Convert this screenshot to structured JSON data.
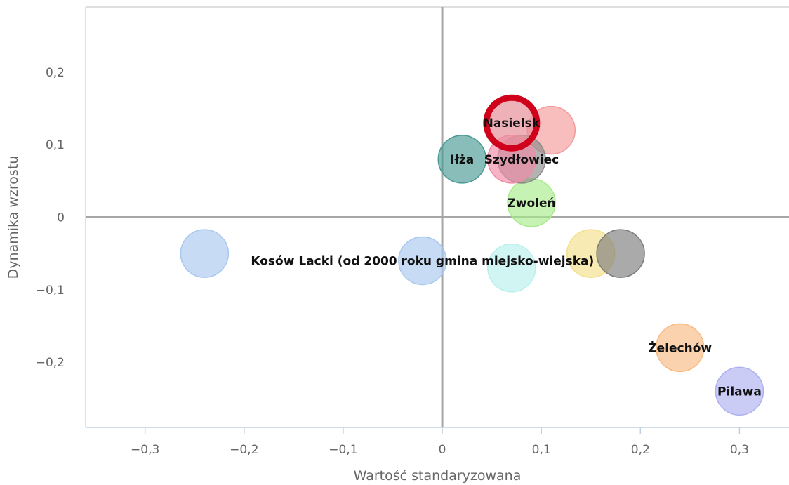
{
  "chart_data": {
    "type": "scatter",
    "xlabel": "Wartość standaryzowana",
    "ylabel": "Dynamika wzrostu",
    "xlim": [
      -0.36,
      0.35
    ],
    "ylim": [
      -0.29,
      0.29
    ],
    "xticks": [
      {
        "value": -0.3,
        "label": "−0,3"
      },
      {
        "value": -0.2,
        "label": "−0,2"
      },
      {
        "value": -0.1,
        "label": "−0,1"
      },
      {
        "value": 0,
        "label": "0"
      },
      {
        "value": 0.1,
        "label": "0,1"
      },
      {
        "value": 0.2,
        "label": "0,2"
      },
      {
        "value": 0.3,
        "label": "0,3"
      }
    ],
    "yticks": [
      {
        "value": 0.2,
        "label": "0,2"
      },
      {
        "value": 0.1,
        "label": "0,1"
      },
      {
        "value": 0,
        "label": "0"
      },
      {
        "value": -0.1,
        "label": "−0,1"
      },
      {
        "value": -0.2,
        "label": "−0,2"
      }
    ],
    "grid": false,
    "legend": "none",
    "points": [
      {
        "x": -0.24,
        "y": -0.05,
        "color": "#a9c8f0",
        "label": ""
      },
      {
        "x": -0.02,
        "y": -0.06,
        "color": "#a9c8f0",
        "label": "Kosów Lacki (od 2000 roku gmina miejsko-wiejska)"
      },
      {
        "x": 0.07,
        "y": -0.07,
        "color": "#b8f0ec",
        "label": ""
      },
      {
        "x": 0.15,
        "y": -0.05,
        "color": "#f2e08a",
        "label": ""
      },
      {
        "x": 0.18,
        "y": -0.05,
        "color": "#7d7d7d",
        "label": ""
      },
      {
        "x": 0.09,
        "y": 0.02,
        "color": "#a8eb8a",
        "label": "Zwoleń"
      },
      {
        "x": 0.02,
        "y": 0.08,
        "color": "#4a9a94",
        "label": "Iłża"
      },
      {
        "x": 0.11,
        "y": 0.12,
        "color": "#f49a9a",
        "label": ""
      },
      {
        "x": 0.08,
        "y": 0.08,
        "color": "#8a8a8a",
        "label": "Szydłowiec"
      },
      {
        "x": 0.07,
        "y": 0.08,
        "color": "#f08aa6",
        "label": ""
      },
      {
        "x": 0.07,
        "y": 0.13,
        "color": "#e8909a",
        "label": "Nasielsk",
        "highlight": true,
        "highlight_color": "#d0021b"
      },
      {
        "x": 0.24,
        "y": -0.18,
        "color": "#f7bb82",
        "label": "Żelechów"
      },
      {
        "x": 0.3,
        "y": -0.24,
        "color": "#aeb0f0",
        "label": "Pilawa"
      }
    ]
  }
}
